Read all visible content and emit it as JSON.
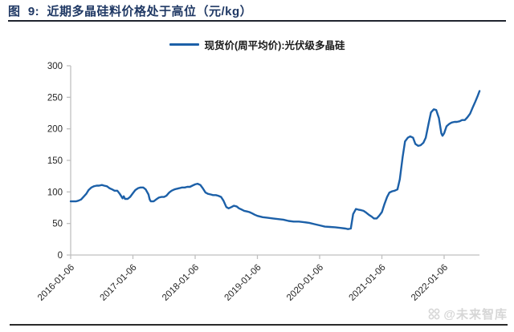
{
  "header": {
    "title": "图  9:  近期多晶硅料价格处于高位（元/kg）"
  },
  "legend": {
    "label": "现货价(周平均价):光伏级多晶硅"
  },
  "watermark": {
    "text": "@未来智库",
    "icon": "clover-logo"
  },
  "colors": {
    "series_blue": "#1C60A8",
    "title_navy": "#1F3864",
    "title_rule": "#20242E",
    "bottom_rule": "#2A2A2A",
    "axis_gray": "#BFBFBF",
    "tick_label": "#262626",
    "watermark_gray": "#D6D6D6"
  },
  "chart_data": {
    "type": "line",
    "title": "近期多晶硅料价格处于高位",
    "unit": "元/kg",
    "ylim": [
      0,
      300
    ],
    "y_tick_step": 50,
    "y_tick_labels": [
      "0",
      "50",
      "100",
      "150",
      "200",
      "250",
      "300"
    ],
    "x_tick_labels": [
      "2016-01-06",
      "2017-01-06",
      "2018-01-06",
      "2019-01-06",
      "2020-01-06",
      "2021-01-06",
      "2022-01-06"
    ],
    "grid": false,
    "legend_position": "top-center",
    "series": [
      {
        "name": "现货价(周平均价):光伏级多晶硅",
        "color": "#1C60A8",
        "points": [
          [
            "2016-01-06",
            85
          ],
          [
            "2016-01-20",
            85
          ],
          [
            "2016-02-06",
            85
          ],
          [
            "2016-02-20",
            86
          ],
          [
            "2016-03-06",
            88
          ],
          [
            "2016-03-20",
            92
          ],
          [
            "2016-04-06",
            97
          ],
          [
            "2016-04-20",
            103
          ],
          [
            "2016-05-06",
            107
          ],
          [
            "2016-05-20",
            109
          ],
          [
            "2016-06-06",
            110
          ],
          [
            "2016-06-20",
            110
          ],
          [
            "2016-07-06",
            111
          ],
          [
            "2016-07-20",
            110
          ],
          [
            "2016-08-06",
            109
          ],
          [
            "2016-08-20",
            106
          ],
          [
            "2016-09-06",
            104
          ],
          [
            "2016-09-20",
            102
          ],
          [
            "2016-10-06",
            102
          ],
          [
            "2016-10-20",
            97
          ],
          [
            "2016-11-06",
            90
          ],
          [
            "2016-11-13",
            93
          ],
          [
            "2016-11-20",
            89
          ],
          [
            "2016-12-06",
            89
          ],
          [
            "2016-12-20",
            92
          ],
          [
            "2017-01-06",
            98
          ],
          [
            "2017-01-20",
            103
          ],
          [
            "2017-02-06",
            106
          ],
          [
            "2017-02-20",
            107
          ],
          [
            "2017-03-06",
            107
          ],
          [
            "2017-03-20",
            104
          ],
          [
            "2017-04-06",
            96
          ],
          [
            "2017-04-13",
            88
          ],
          [
            "2017-04-20",
            85
          ],
          [
            "2017-05-06",
            85
          ],
          [
            "2017-05-20",
            88
          ],
          [
            "2017-06-06",
            91
          ],
          [
            "2017-06-20",
            92
          ],
          [
            "2017-07-06",
            92
          ],
          [
            "2017-07-20",
            94
          ],
          [
            "2017-08-06",
            99
          ],
          [
            "2017-08-20",
            102
          ],
          [
            "2017-09-06",
            104
          ],
          [
            "2017-09-20",
            105
          ],
          [
            "2017-10-06",
            106
          ],
          [
            "2017-10-20",
            107
          ],
          [
            "2017-11-06",
            107
          ],
          [
            "2017-11-20",
            108
          ],
          [
            "2017-12-06",
            108
          ],
          [
            "2017-12-20",
            110
          ],
          [
            "2018-01-06",
            112
          ],
          [
            "2018-01-20",
            113
          ],
          [
            "2018-02-06",
            111
          ],
          [
            "2018-02-20",
            106
          ],
          [
            "2018-03-06",
            99
          ],
          [
            "2018-03-20",
            97
          ],
          [
            "2018-04-06",
            96
          ],
          [
            "2018-04-20",
            95
          ],
          [
            "2018-05-06",
            95
          ],
          [
            "2018-05-20",
            94
          ],
          [
            "2018-06-06",
            92
          ],
          [
            "2018-06-20",
            86
          ],
          [
            "2018-07-06",
            76
          ],
          [
            "2018-07-20",
            74
          ],
          [
            "2018-08-06",
            76
          ],
          [
            "2018-08-20",
            78
          ],
          [
            "2018-09-06",
            77
          ],
          [
            "2018-09-20",
            74
          ],
          [
            "2018-10-06",
            72
          ],
          [
            "2018-10-20",
            70
          ],
          [
            "2018-11-06",
            69
          ],
          [
            "2018-11-20",
            68
          ],
          [
            "2018-12-06",
            66
          ],
          [
            "2018-12-20",
            64
          ],
          [
            "2019-01-06",
            62
          ],
          [
            "2019-02-06",
            60
          ],
          [
            "2019-03-06",
            59
          ],
          [
            "2019-04-06",
            58
          ],
          [
            "2019-05-06",
            57
          ],
          [
            "2019-06-06",
            56
          ],
          [
            "2019-07-06",
            54
          ],
          [
            "2019-08-06",
            53
          ],
          [
            "2019-09-06",
            53
          ],
          [
            "2019-10-06",
            52
          ],
          [
            "2019-11-06",
            51
          ],
          [
            "2019-12-06",
            49
          ],
          [
            "2020-01-06",
            47
          ],
          [
            "2020-02-06",
            45
          ],
          [
            "2020-03-06",
            44.5
          ],
          [
            "2020-04-06",
            44
          ],
          [
            "2020-05-06",
            43
          ],
          [
            "2020-06-06",
            42
          ],
          [
            "2020-06-20",
            41
          ],
          [
            "2020-07-06",
            42
          ],
          [
            "2020-07-20",
            65
          ],
          [
            "2020-08-06",
            73
          ],
          [
            "2020-08-20",
            72
          ],
          [
            "2020-09-06",
            71
          ],
          [
            "2020-09-20",
            70
          ],
          [
            "2020-10-06",
            67
          ],
          [
            "2020-10-20",
            64
          ],
          [
            "2020-11-06",
            61
          ],
          [
            "2020-11-20",
            58
          ],
          [
            "2020-12-06",
            58
          ],
          [
            "2020-12-20",
            62
          ],
          [
            "2021-01-06",
            68
          ],
          [
            "2021-01-20",
            80
          ],
          [
            "2021-02-06",
            92
          ],
          [
            "2021-02-20",
            99
          ],
          [
            "2021-03-06",
            101
          ],
          [
            "2021-03-20",
            102
          ],
          [
            "2021-04-06",
            104
          ],
          [
            "2021-04-20",
            120
          ],
          [
            "2021-05-06",
            155
          ],
          [
            "2021-05-20",
            180
          ],
          [
            "2021-06-06",
            186
          ],
          [
            "2021-06-20",
            188
          ],
          [
            "2021-07-06",
            186
          ],
          [
            "2021-07-20",
            176
          ],
          [
            "2021-08-06",
            173
          ],
          [
            "2021-08-20",
            174
          ],
          [
            "2021-09-06",
            178
          ],
          [
            "2021-09-20",
            186
          ],
          [
            "2021-10-06",
            208
          ],
          [
            "2021-10-20",
            226
          ],
          [
            "2021-11-06",
            231
          ],
          [
            "2021-11-20",
            230
          ],
          [
            "2021-12-06",
            217
          ],
          [
            "2021-12-20",
            193
          ],
          [
            "2021-12-27",
            189
          ],
          [
            "2022-01-06",
            193
          ],
          [
            "2022-01-20",
            204
          ],
          [
            "2022-02-06",
            208
          ],
          [
            "2022-02-20",
            210
          ],
          [
            "2022-03-06",
            211
          ],
          [
            "2022-03-20",
            211
          ],
          [
            "2022-04-06",
            212
          ],
          [
            "2022-04-20",
            214
          ],
          [
            "2022-05-06",
            214
          ],
          [
            "2022-05-20",
            218
          ],
          [
            "2022-06-06",
            224
          ],
          [
            "2022-06-20",
            233
          ],
          [
            "2022-07-06",
            243
          ],
          [
            "2022-07-20",
            252
          ],
          [
            "2022-08-01",
            260
          ]
        ]
      }
    ]
  }
}
